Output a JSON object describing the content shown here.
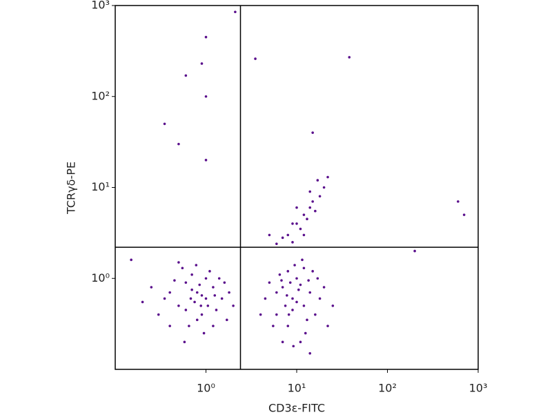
{
  "chart_data": {
    "type": "scatter",
    "x_label": "CD3ε-FITC",
    "y_label": "TCRγδ-PE",
    "xscale": "log",
    "yscale": "log",
    "xlim": [
      0.1,
      1000
    ],
    "ylim": [
      0.1,
      1000
    ],
    "xticks": [
      {
        "value": 1,
        "label": "10⁰"
      },
      {
        "value": 10,
        "label": "10¹"
      },
      {
        "value": 100,
        "label": "10²"
      },
      {
        "value": 1000,
        "label": "10³"
      }
    ],
    "yticks": [
      {
        "value": 1,
        "label": "10⁰"
      },
      {
        "value": 10,
        "label": "10¹"
      },
      {
        "value": 100,
        "label": "10²"
      },
      {
        "value": 1000,
        "label": "10³"
      }
    ],
    "quadrant_x": 2.4,
    "quadrant_y": 2.2,
    "color": "#5a0f8c",
    "x": [
      0.8,
      0.6,
      1.0,
      0.5,
      0.7,
      1.2,
      0.9,
      0.4,
      1.5,
      0.65,
      1.1,
      0.75,
      0.55,
      1.3,
      0.85,
      0.45,
      1.8,
      0.35,
      0.95,
      0.7,
      1.0,
      0.6,
      1.4,
      0.8,
      0.3,
      2.0,
      0.5,
      1.2,
      0.9,
      0.68,
      0.25,
      1.6,
      0.58,
      1.05,
      0.78,
      0.4,
      1.25,
      0.88,
      0.2,
      1.7,
      9,
      7,
      12,
      6,
      10,
      14,
      8,
      5,
      11,
      15,
      7.5,
      9.5,
      13,
      6.5,
      18,
      4.5,
      10.5,
      8.5,
      12.5,
      20,
      7,
      9,
      16,
      5.5,
      11.5,
      8,
      14,
      6,
      25,
      10,
      7.8,
      13.5,
      9.2,
      4,
      17,
      11,
      8.2,
      6.8,
      12,
      22,
      8,
      10,
      12,
      9,
      14,
      11,
      15,
      7,
      13,
      16,
      6,
      10,
      18,
      12,
      20,
      9,
      14,
      17,
      5,
      22,
      2.1,
      1.0,
      3.5,
      38,
      0.6,
      0.9,
      1.0,
      0.35,
      15,
      1.0,
      0.5,
      600,
      700,
      200,
      0.15
    ],
    "y": [
      0.7,
      0.9,
      0.6,
      0.5,
      1.1,
      0.8,
      0.4,
      0.7,
      0.6,
      0.3,
      1.2,
      0.55,
      1.3,
      0.45,
      0.85,
      0.95,
      0.7,
      0.6,
      0.25,
      0.75,
      1.0,
      0.45,
      1.0,
      0.35,
      0.4,
      0.5,
      1.5,
      0.3,
      0.65,
      0.6,
      0.8,
      0.9,
      0.2,
      0.5,
      1.4,
      0.3,
      0.65,
      0.5,
      0.55,
      0.35,
      0.6,
      0.8,
      0.5,
      0.4,
      1.0,
      0.7,
      0.3,
      0.9,
      0.2,
      1.2,
      0.5,
      1.4,
      0.35,
      1.1,
      0.6,
      0.6,
      0.75,
      0.9,
      0.25,
      0.8,
      0.2,
      0.45,
      0.4,
      0.3,
      1.6,
      1.2,
      0.15,
      0.7,
      0.5,
      0.55,
      0.65,
      0.95,
      0.18,
      0.4,
      1.0,
      0.85,
      0.4,
      0.95,
      1.3,
      0.3,
      3,
      4,
      5,
      2.5,
      6,
      3.5,
      7,
      2.8,
      4.5,
      5.5,
      2.4,
      6,
      8,
      3,
      10,
      4,
      9,
      12,
      3,
      13,
      850,
      450,
      260,
      270,
      170,
      230,
      100,
      50,
      40,
      20,
      30,
      7,
      5,
      2,
      1.6
    ]
  }
}
